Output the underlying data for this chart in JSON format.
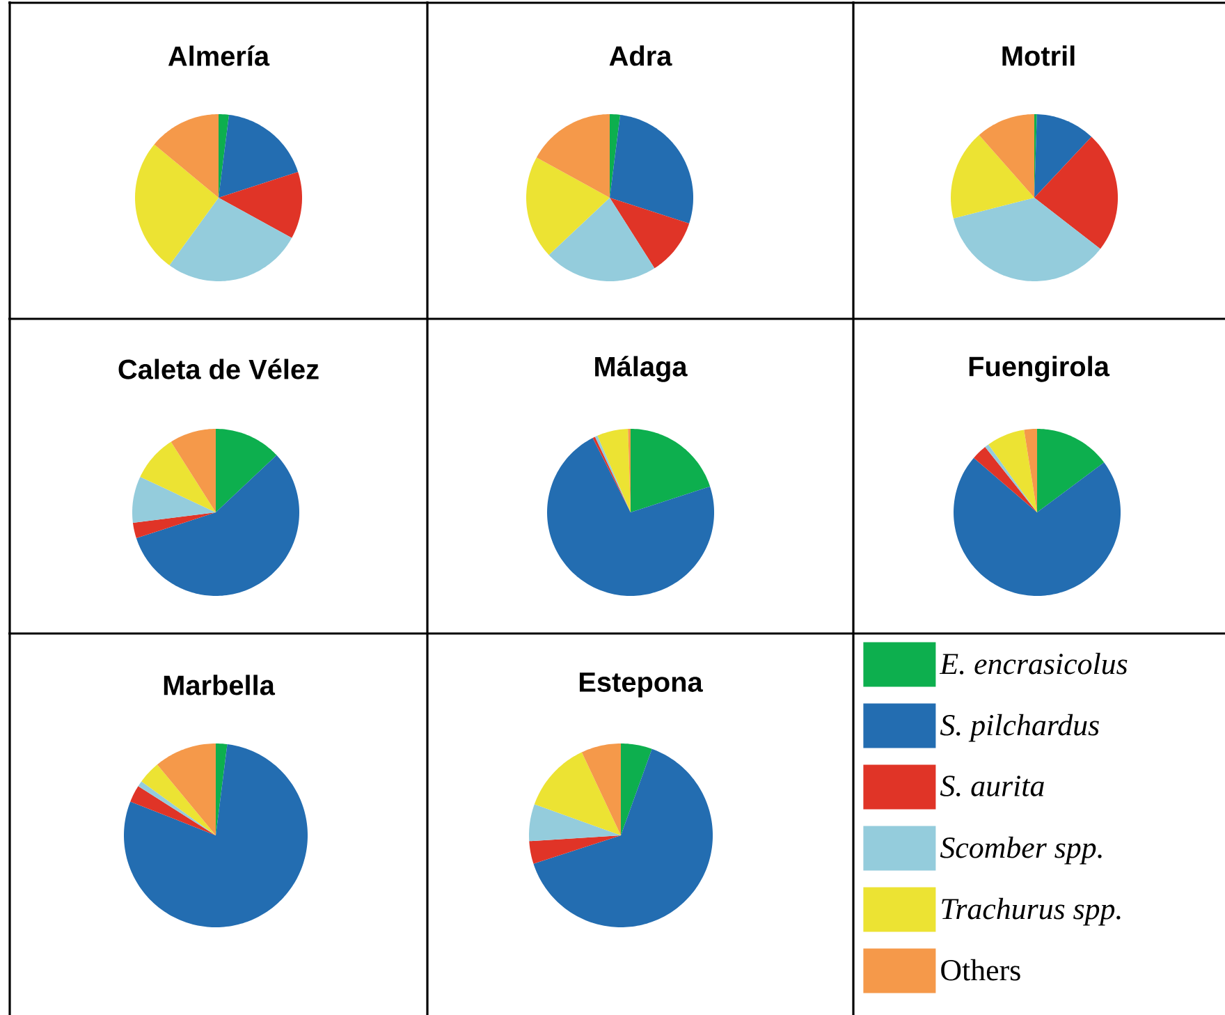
{
  "chart_data": [
    {
      "type": "pie",
      "title": "Almería",
      "categories": [
        null,
        null,
        null,
        null,
        null,
        null
      ],
      "values": [
        2,
        18,
        13,
        27,
        26,
        14
      ],
      "colors": [
        "#0daf4e",
        "#236db1",
        "#e03427",
        "#94ccdc",
        "#ece333",
        "#f5994a"
      ]
    },
    {
      "type": "pie",
      "title": "Adra",
      "categories": [
        null,
        null,
        null,
        null,
        null,
        null
      ],
      "values": [
        2,
        28,
        11,
        22,
        20,
        17
      ],
      "colors": [
        "#0daf4e",
        "#236db1",
        "#e03427",
        "#94ccdc",
        "#ece333",
        "#f5994a"
      ]
    },
    {
      "type": "pie",
      "title": "Motril",
      "categories": [
        null,
        null,
        null,
        null,
        null,
        null
      ],
      "values": [
        0.5,
        11.5,
        23.5,
        35.5,
        17.5,
        11.5
      ],
      "colors": [
        "#0daf4e",
        "#236db1",
        "#e03427",
        "#94ccdc",
        "#ece333",
        "#f5994a"
      ]
    },
    {
      "type": "pie",
      "title": "Caleta de Vélez",
      "categories": [
        null,
        null,
        null,
        null,
        null,
        null
      ],
      "values": [
        13,
        57,
        3,
        9,
        9,
        9
      ],
      "colors": [
        "#0daf4e",
        "#236db1",
        "#e03427",
        "#94ccdc",
        "#ece333",
        "#f5994a"
      ]
    },
    {
      "type": "pie",
      "title": "Málaga",
      "categories": [
        null,
        null,
        null,
        null,
        null,
        null
      ],
      "values": [
        20,
        72.5,
        0.5,
        0.5,
        6,
        0.5
      ],
      "colors": [
        "#0daf4e",
        "#236db1",
        "#e03427",
        "#94ccdc",
        "#ece333",
        "#f5994a"
      ]
    },
    {
      "type": "pie",
      "title": "Fuengirola",
      "categories": [
        null,
        null,
        null,
        null,
        null,
        null
      ],
      "values": [
        14.8,
        71.5,
        3,
        0.8,
        7.4,
        2.5
      ],
      "colors": [
        "#0daf4e",
        "#236db1",
        "#e03427",
        "#94ccdc",
        "#ece333",
        "#f5994a"
      ]
    },
    {
      "type": "pie",
      "title": "Marbella",
      "categories": [
        null,
        null,
        null,
        null,
        null,
        null
      ],
      "values": [
        2,
        79,
        3,
        1,
        4,
        11
      ],
      "colors": [
        "#0daf4e",
        "#236db1",
        "#e03427",
        "#94ccdc",
        "#ece333",
        "#f5994a"
      ]
    },
    {
      "type": "pie",
      "title": "Estepona",
      "categories": [
        "*E. encrasicolus*",
        "*S. pilchardus*",
        "*S. aurita*",
        "*Scomber spp.*",
        "*Trachurus spp.*",
        "Others"
      ],
      "values": [
        5.5,
        64.5,
        4,
        6.5,
        12.5,
        7
      ],
      "colors": [
        "#0daf4e",
        "#236db1",
        "#e03427",
        "#94ccdc",
        "#ece333",
        "#f5994a"
      ],
      "legend": "right"
    }
  ]
}
